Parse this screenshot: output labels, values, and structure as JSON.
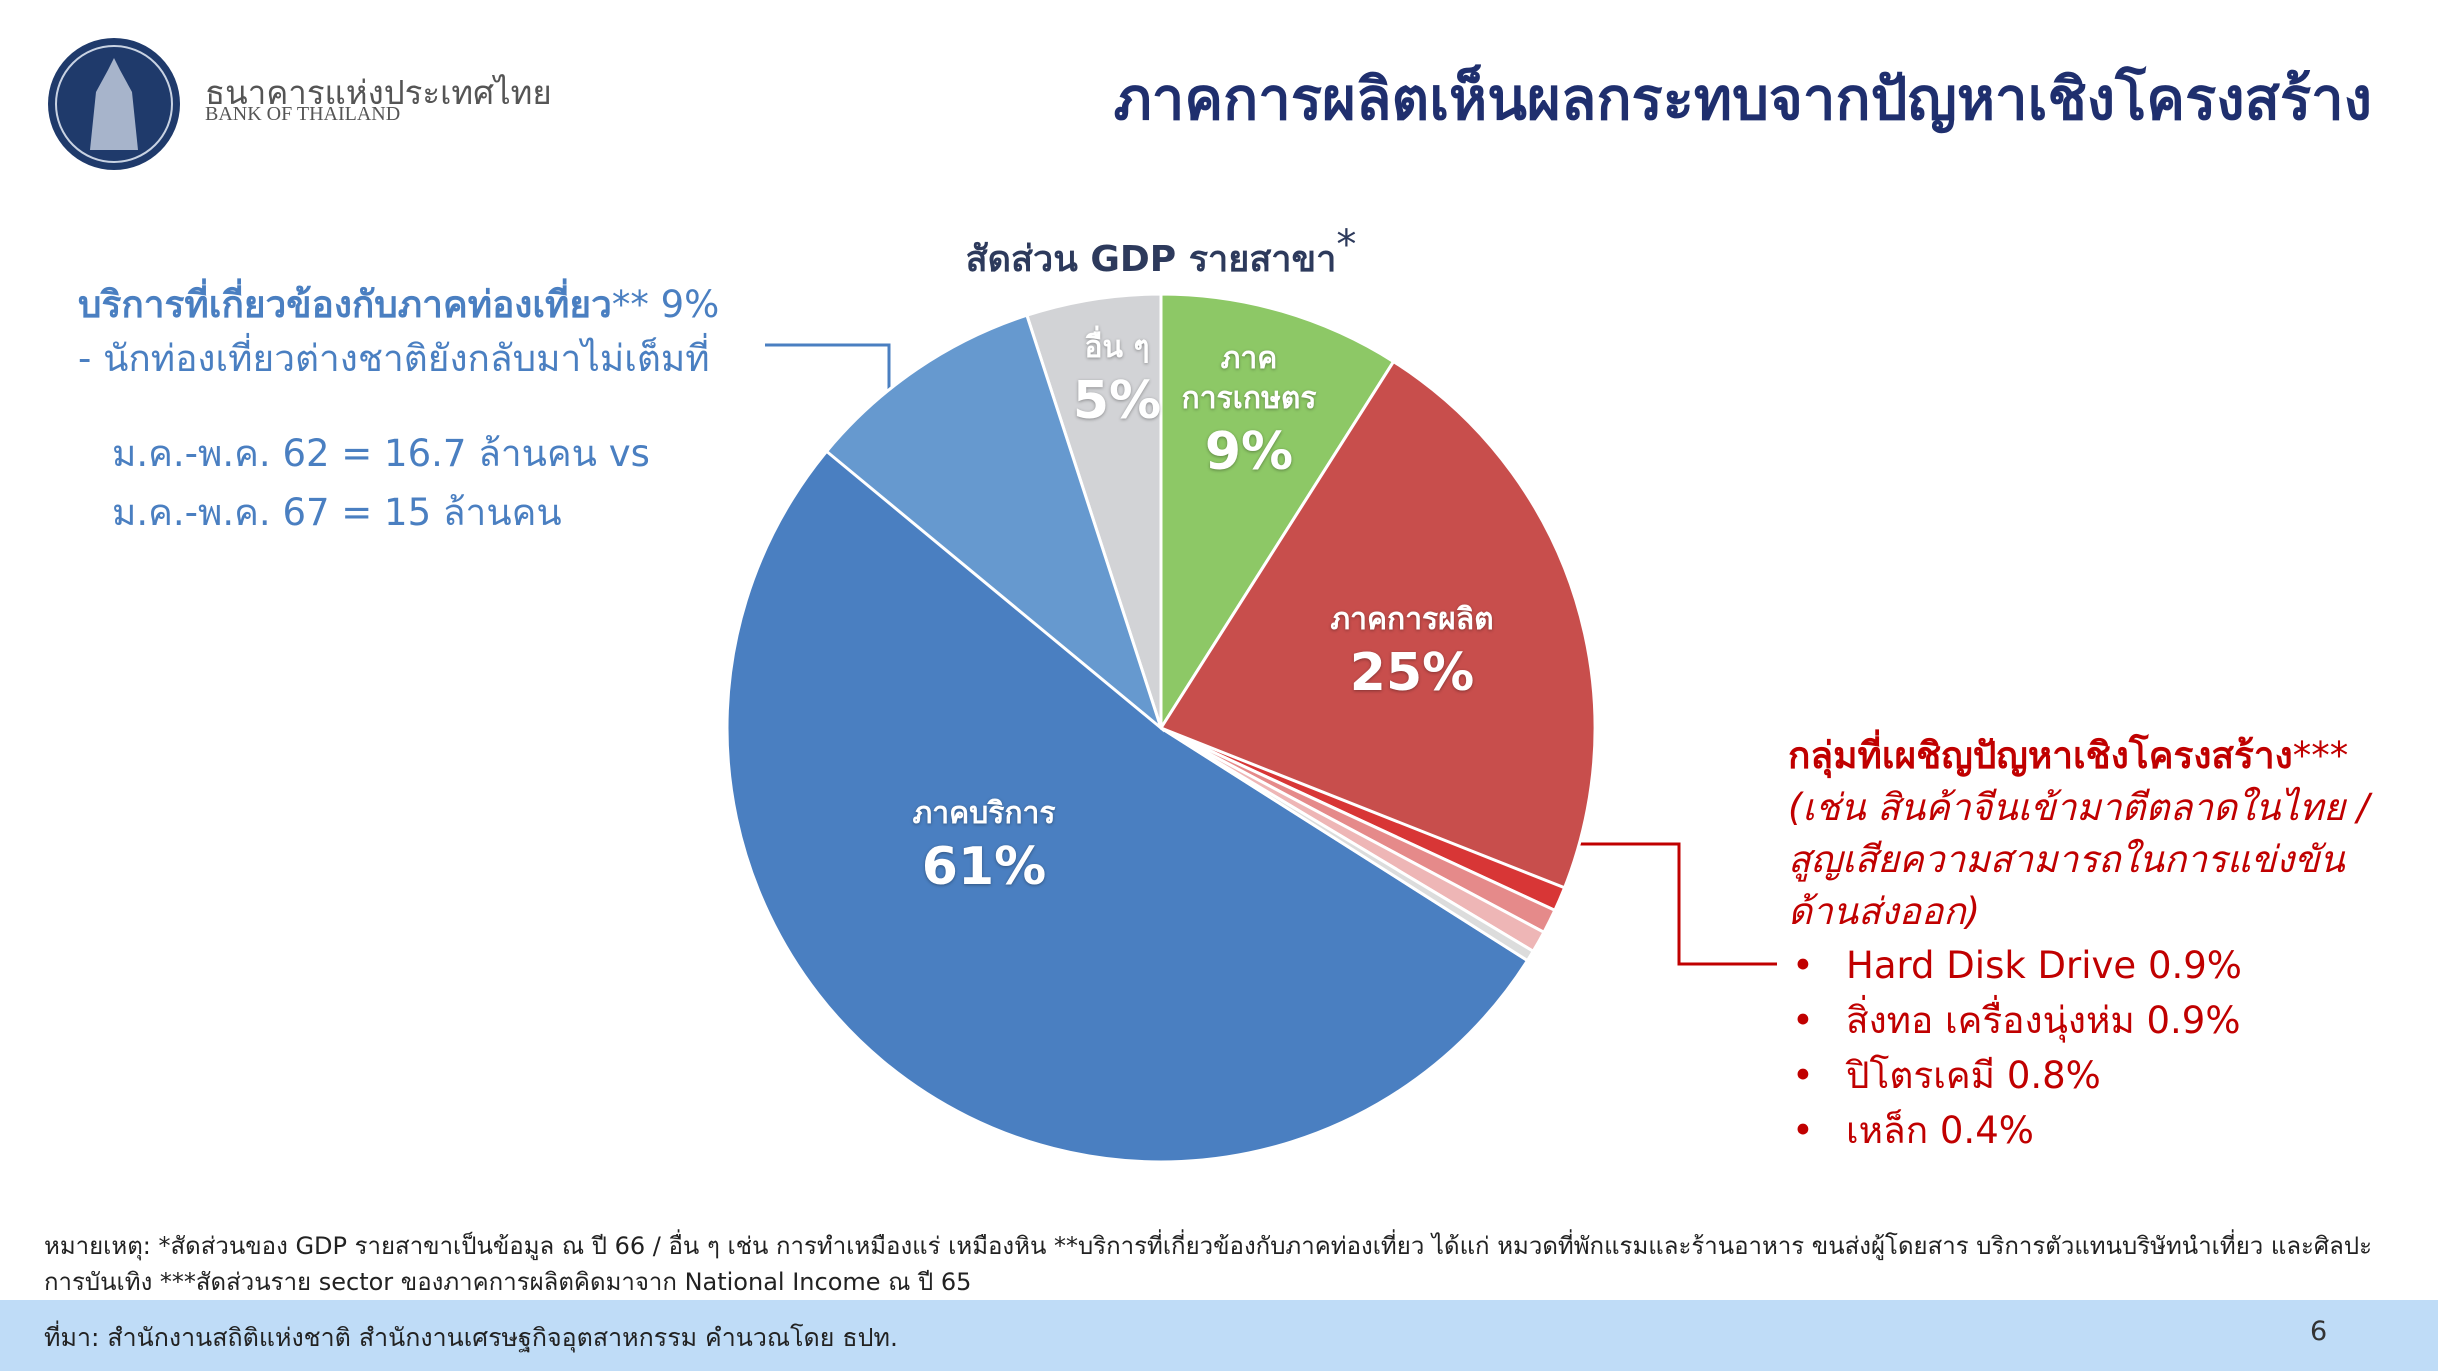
{
  "header": {
    "org_th": "ธนาคารแห่งประเทศไทย",
    "org_en": "BANK OF THAILAND",
    "title": "ภาคการผลิตเห็นผลกระทบจากปัญหาเชิงโครงสร้าง"
  },
  "chart_data": {
    "type": "pie",
    "title": "สัดส่วน GDP รายสาขา",
    "title_mark": "*",
    "categories": [
      "ภาค การเกษตร",
      "ภาคการผลิต",
      "ภาคบริการ",
      "อื่น ๆ"
    ],
    "values": [
      9,
      25,
      61,
      5
    ],
    "value_labels": [
      "9%",
      "25%",
      "61%",
      "5%"
    ],
    "colors": [
      "#8dc866",
      "#c84e4c",
      "#4a7fc1",
      "#d2d3d6"
    ],
    "tourism": {
      "name": "บริการที่เกี่ยวข้องกับภาคท่องเที่ยว",
      "mark": "**",
      "value": 9,
      "value_label": "9%",
      "color": "#6699cf",
      "notes": [
        "- นักท่องเที่ยวต่างชาติยังกลับมาไม่เต็มที่",
        "ม.ค.-พ.ค. 62 = 16.7 ล้านคน vs",
        "ม.ค.-พ.ค. 67 = 15 ล้านคน"
      ]
    },
    "structural": {
      "name": "กลุ่มที่เผชิญปัญหาเชิงโครงสร้าง",
      "mark": "***",
      "note": "(เช่น สินค้าจีนเข้ามาตีตลาดในไทย / สูญเสียความสามารถในการแข่งขันด้านส่งออก)",
      "items": [
        {
          "name": "Hard Disk Drive",
          "value": 0.9,
          "value_label": "0.9%",
          "color": "#d83636"
        },
        {
          "name": "สิ่งทอ เครื่องนุ่งห่ม",
          "value": 0.9,
          "value_label": "0.9%",
          "color": "#e58a8a"
        },
        {
          "name": "ปิโตรเคมี",
          "value": 0.8,
          "value_label": "0.8%",
          "color": "#eeb6b6"
        },
        {
          "name": "เหล็ก",
          "value": 0.4,
          "value_label": "0.4%",
          "color": "#dcdcdc"
        }
      ]
    }
  },
  "footnote": "หมายเหตุ: *สัดส่วนของ GDP รายสาขาเป็นข้อมูล ณ ปี 66 / อื่น ๆ เช่น การทำเหมืองแร่ เหมืองหิน **บริการที่เกี่ยวข้องกับภาคท่องเที่ยว ได้แก่ หมวดที่พักแรมและร้านอาหาร ขนส่งผู้โดยสาร บริการตัวแทนบริษัทนำเที่ยว และศิลปะการบันเทิง ***สัดส่วนราย sector ของภาคการผลิตคิดมาจาก National Income ณ ปี 65",
  "source": "ที่มา: สำนักงานสถิติแห่งชาติ สำนักงานเศรษฐกิจอุตสาหกรรม คำนวณโดย ธปท.",
  "page_number": "6"
}
